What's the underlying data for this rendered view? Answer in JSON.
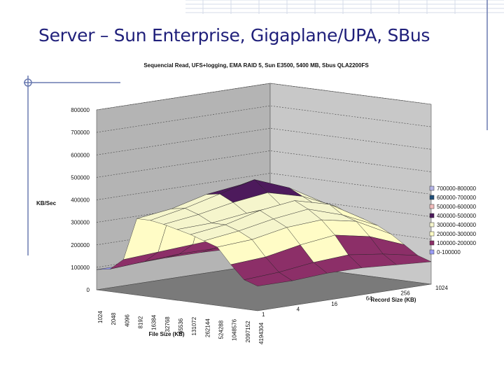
{
  "slide": {
    "title": "Server – Sun Enterprise, Gigaplane/UPA, SBus"
  },
  "chart_data": {
    "type": "surface",
    "title": "Sequencial Read, UFS+logging, EMA RAID 5, Sun E3500, 5400 MB, Sbus QLA2200FS",
    "zlabel": "KB/Sec",
    "xlabel": "File Size (KB)",
    "ylabel": "Record Size (KB)",
    "zlim": [
      0,
      800000
    ],
    "z_ticks": [
      0,
      100000,
      200000,
      300000,
      400000,
      500000,
      600000,
      700000,
      800000
    ],
    "file_sizes": [
      "1024",
      "2048",
      "4096",
      "8192",
      "16384",
      "32768",
      "65536",
      "131072",
      "262144",
      "524288",
      "1048576",
      "2097152",
      "4194304"
    ],
    "record_sizes": [
      "1",
      "4",
      "16",
      "64",
      "256",
      "1024"
    ],
    "legend": [
      {
        "label": "700000-800000",
        "color": "#b6b6e8"
      },
      {
        "label": "600000-700000",
        "color": "#1f4f7a"
      },
      {
        "label": "500000-600000",
        "color": "#f2bcbc"
      },
      {
        "label": "400000-500000",
        "color": "#4d1a5c"
      },
      {
        "label": "300000-400000",
        "color": "#f5f5cc"
      },
      {
        "label": "200000-300000",
        "color": "#fffcc6"
      },
      {
        "label": "100000-200000",
        "color": "#8c2f68"
      },
      {
        "label": "0-100000",
        "color": "#9a9cf5"
      }
    ],
    "values": [
      [
        90000,
        100000,
        150000,
        340000,
        340000,
        330000,
        315000,
        300000,
        280000,
        260000,
        190000,
        130000,
        110000
      ],
      [
        90000,
        110000,
        160000,
        360000,
        370000,
        350000,
        320000,
        320000,
        300000,
        270000,
        200000,
        140000,
        110000
      ],
      [
        95000,
        120000,
        170000,
        400000,
        410000,
        380000,
        340000,
        360000,
        330000,
        300000,
        230000,
        160000,
        120000
      ],
      [
        95000,
        120000,
        180000,
        420000,
        450000,
        400000,
        350000,
        380000,
        350000,
        310000,
        250000,
        170000,
        120000
      ],
      [
        90000,
        110000,
        160000,
        380000,
        390000,
        360000,
        330000,
        340000,
        300000,
        280000,
        220000,
        150000,
        110000
      ],
      [
        80000,
        100000,
        140000,
        300000,
        300000,
        290000,
        260000,
        250000,
        230000,
        200000,
        160000,
        120000,
        100000
      ]
    ]
  }
}
